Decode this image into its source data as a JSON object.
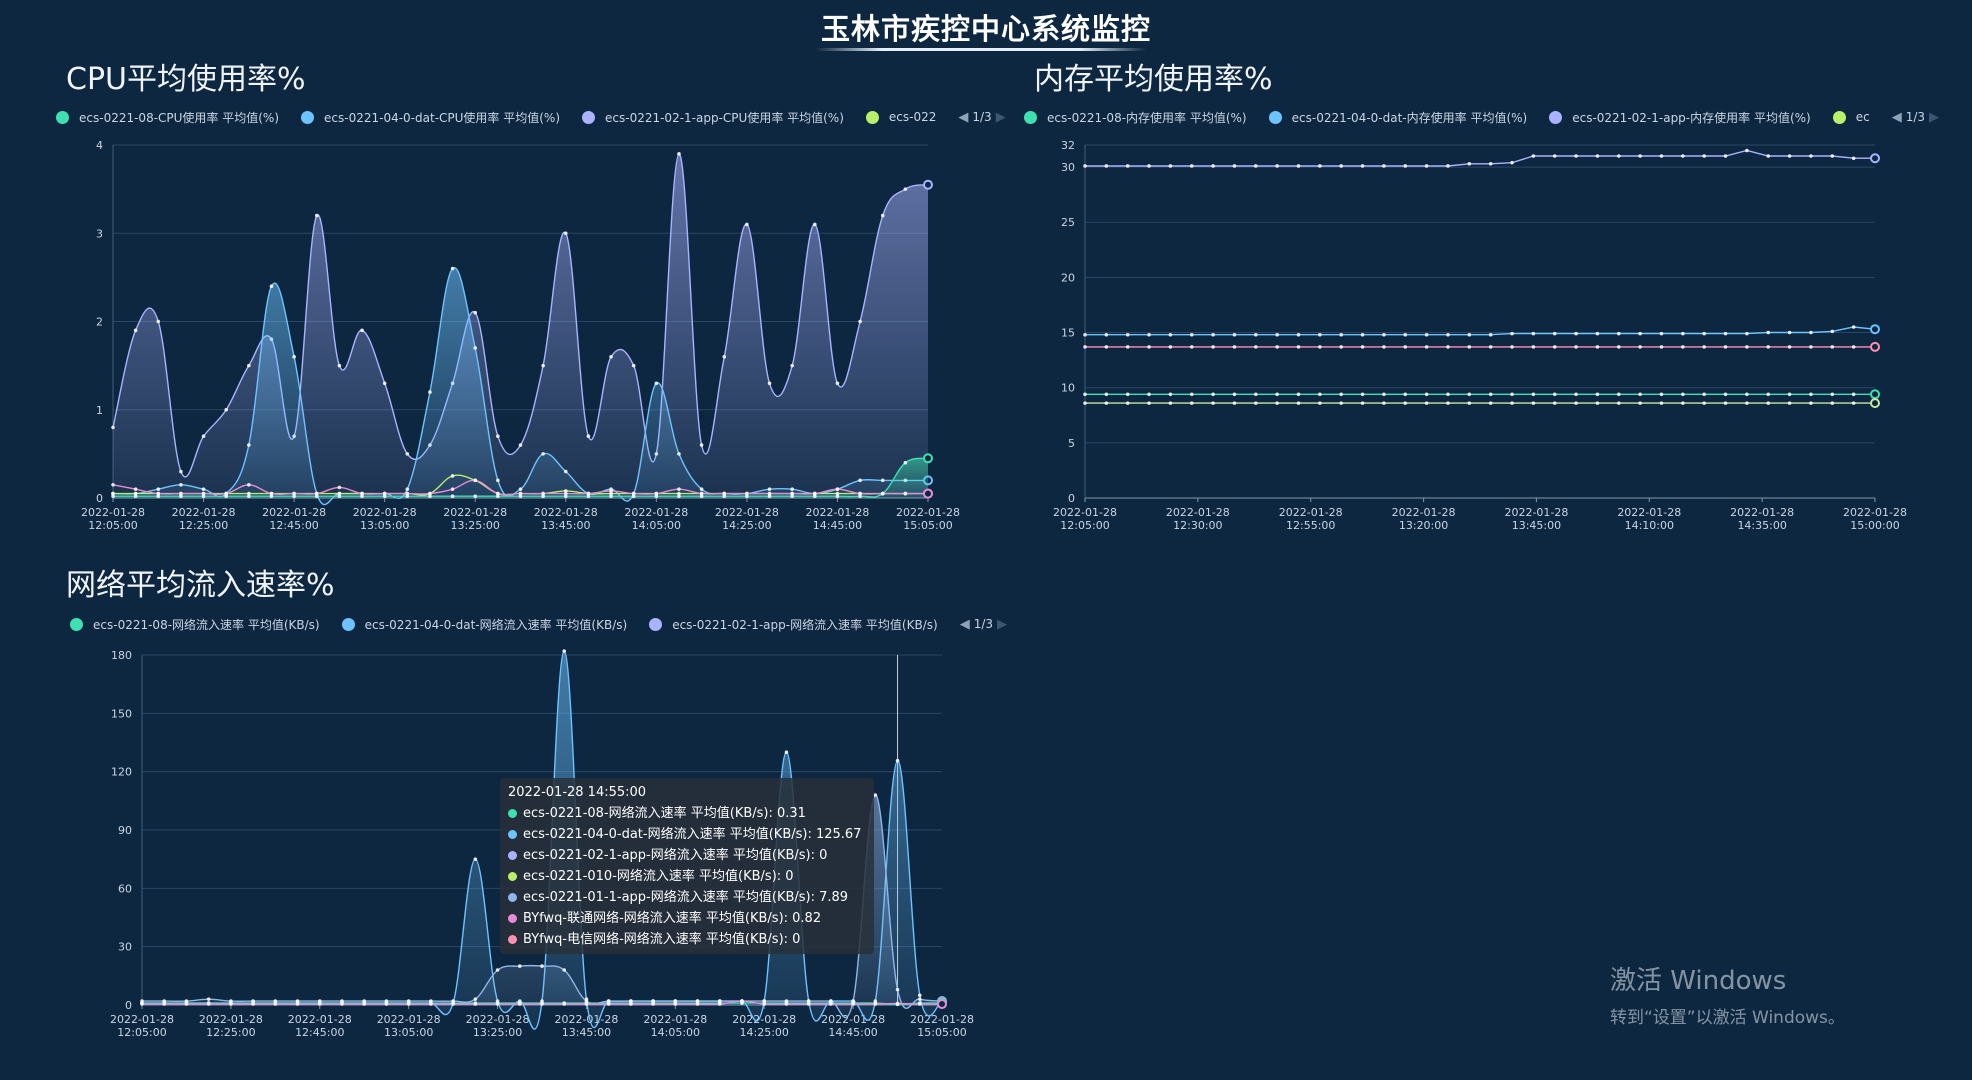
{
  "page": {
    "title": "玉林市疾控中心系统监控"
  },
  "charts": {
    "cpu": {
      "title": "CPU平均使用率%",
      "legend": [
        {
          "label": "ecs-0221-08-CPU使用率 平均值(%)",
          "color": "#3fe0b0"
        },
        {
          "label": "ecs-0221-04-0-dat-CPU使用率 平均值(%)",
          "color": "#6ec3ff"
        },
        {
          "label": "ecs-0221-02-1-app-CPU使用率 平均值(%)",
          "color": "#a9b3ff"
        },
        {
          "label": "ecs-022",
          "color": "#b8f06a"
        }
      ],
      "pager": "1/3"
    },
    "memory": {
      "title": "内存平均使用率%",
      "legend": [
        {
          "label": "ecs-0221-08-内存使用率 平均值(%)",
          "color": "#3fe0b0"
        },
        {
          "label": "ecs-0221-04-0-dat-内存使用率 平均值(%)",
          "color": "#6ec3ff"
        },
        {
          "label": "ecs-0221-02-1-app-内存使用率 平均值(%)",
          "color": "#a9b3ff"
        },
        {
          "label": "ec",
          "color": "#b8f06a"
        }
      ],
      "pager": "1/3"
    },
    "network": {
      "title": "网络平均流入速率%",
      "legend": [
        {
          "label": "ecs-0221-08-网络流入速率 平均值(KB/s)",
          "color": "#3fe0b0"
        },
        {
          "label": "ecs-0221-04-0-dat-网络流入速率 平均值(KB/s)",
          "color": "#6ec3ff"
        },
        {
          "label": "ecs-0221-02-1-app-网络流入速率 平均值(KB/s)",
          "color": "#a9b3ff"
        }
      ],
      "pager": "1/3"
    }
  },
  "tooltip": {
    "title": "2022-01-28 14:55:00",
    "rows": [
      {
        "text": "ecs-0221-08-网络流入速率 平均值(KB/s): 0.31",
        "color": "#3fe0b0"
      },
      {
        "text": "ecs-0221-04-0-dat-网络流入速率 平均值(KB/s): 125.67",
        "color": "#6ec3ff"
      },
      {
        "text": "ecs-0221-02-1-app-网络流入速率 平均值(KB/s): 0",
        "color": "#a9b3ff"
      },
      {
        "text": "ecs-0221-010-网络流入速率 平均值(KB/s): 0",
        "color": "#b8f06a"
      },
      {
        "text": "ecs-0221-01-1-app-网络流入速率 平均值(KB/s): 7.89",
        "color": "#8fb6e8"
      },
      {
        "text": "BYfwq-联通网络-网络流入速率 平均值(KB/s): 0.82",
        "color": "#e98ad8"
      },
      {
        "text": "BYfwq-电信网络-网络流入速率 平均值(KB/s): 0",
        "color": "#ff8fb3"
      }
    ]
  },
  "watermark": {
    "line1": "激活 Windows",
    "line2": "转到“设置”以激活 Windows。"
  },
  "chart_data": [
    {
      "type": "area",
      "title": "CPU平均使用率%",
      "ylim": [
        0,
        4
      ],
      "yticks": [
        0,
        1,
        2,
        3,
        4
      ],
      "x": [
        "2022-01-28 12:05:00",
        "2022-01-28 12:10:00",
        "2022-01-28 12:15:00",
        "2022-01-28 12:20:00",
        "2022-01-28 12:25:00",
        "2022-01-28 12:30:00",
        "2022-01-28 12:35:00",
        "2022-01-28 12:40:00",
        "2022-01-28 12:45:00",
        "2022-01-28 12:50:00",
        "2022-01-28 12:55:00",
        "2022-01-28 13:00:00",
        "2022-01-28 13:05:00",
        "2022-01-28 13:10:00",
        "2022-01-28 13:15:00",
        "2022-01-28 13:20:00",
        "2022-01-28 13:25:00",
        "2022-01-28 13:30:00",
        "2022-01-28 13:35:00",
        "2022-01-28 13:40:00",
        "2022-01-28 13:45:00",
        "2022-01-28 13:50:00",
        "2022-01-28 13:55:00",
        "2022-01-28 14:00:00",
        "2022-01-28 14:05:00",
        "2022-01-28 14:10:00",
        "2022-01-28 14:15:00",
        "2022-01-28 14:20:00",
        "2022-01-28 14:25:00",
        "2022-01-28 14:30:00",
        "2022-01-28 14:35:00",
        "2022-01-28 14:40:00",
        "2022-01-28 14:45:00",
        "2022-01-28 14:50:00",
        "2022-01-28 14:55:00",
        "2022-01-28 15:00:00",
        "2022-01-28 15:05:00"
      ],
      "xtick_labels": [
        [
          "2022-01-28",
          "12:05:00"
        ],
        [
          "2022-01-28",
          "12:25:00"
        ],
        [
          "2022-01-28",
          "12:45:00"
        ],
        [
          "2022-01-28",
          "13:05:00"
        ],
        [
          "2022-01-28",
          "13:25:00"
        ],
        [
          "2022-01-28",
          "13:45:00"
        ],
        [
          "2022-01-28",
          "14:05:00"
        ],
        [
          "2022-01-28",
          "14:25:00"
        ],
        [
          "2022-01-28",
          "14:45:00"
        ],
        [
          "2022-01-28",
          "15:05:00"
        ]
      ],
      "series": [
        {
          "color": "#a9b3ff",
          "fill": true,
          "values": [
            0.8,
            1.9,
            2.0,
            0.3,
            0.7,
            1.0,
            1.5,
            1.8,
            0.7,
            3.2,
            1.5,
            1.9,
            1.3,
            0.5,
            0.6,
            1.3,
            2.1,
            0.7,
            0.6,
            1.5,
            3.0,
            0.7,
            1.6,
            1.5,
            0.5,
            3.9,
            0.6,
            1.6,
            3.1,
            1.3,
            1.5,
            3.1,
            1.3,
            2.0,
            3.2,
            3.5,
            3.55
          ]
        },
        {
          "color": "#6ec3ff",
          "fill": true,
          "values": [
            0.05,
            0.05,
            0.1,
            0.15,
            0.1,
            0.05,
            0.6,
            2.4,
            1.6,
            0.05,
            0.05,
            0.05,
            0.05,
            0.1,
            1.2,
            2.6,
            1.7,
            0.2,
            0.1,
            0.5,
            0.3,
            0.05,
            0.1,
            0.05,
            1.3,
            0.5,
            0.1,
            0.05,
            0.05,
            0.1,
            0.1,
            0.05,
            0.1,
            0.2,
            0.2,
            0.2,
            0.2
          ]
        },
        {
          "color": "#3fe0b0",
          "fill": true,
          "values": [
            0.02,
            0.02,
            0.02,
            0.02,
            0.02,
            0.02,
            0.02,
            0.02,
            0.02,
            0.02,
            0.02,
            0.02,
            0.02,
            0.02,
            0.02,
            0.02,
            0.02,
            0.02,
            0.02,
            0.02,
            0.02,
            0.02,
            0.02,
            0.02,
            0.02,
            0.02,
            0.02,
            0.02,
            0.02,
            0.02,
            0.02,
            0.02,
            0.02,
            0.02,
            0.05,
            0.4,
            0.45
          ]
        },
        {
          "color": "#b8f06a",
          "fill": false,
          "values": [
            0.05,
            0.05,
            0.05,
            0.05,
            0.05,
            0.05,
            0.05,
            0.05,
            0.05,
            0.05,
            0.05,
            0.05,
            0.05,
            0.05,
            0.05,
            0.25,
            0.2,
            0.05,
            0.05,
            0.05,
            0.08,
            0.05,
            0.05,
            0.05,
            0.05,
            0.05,
            0.05,
            0.05,
            0.05,
            0.05,
            0.05,
            0.05,
            0.05,
            0.05,
            0.05,
            0.05,
            0.05
          ]
        },
        {
          "color": "#e98ad8",
          "fill": false,
          "values": [
            0.15,
            0.1,
            0.05,
            0.05,
            0.05,
            0.05,
            0.15,
            0.05,
            0.05,
            0.05,
            0.12,
            0.05,
            0.05,
            0.05,
            0.05,
            0.1,
            0.2,
            0.05,
            0.05,
            0.05,
            0.05,
            0.05,
            0.08,
            0.05,
            0.05,
            0.1,
            0.05,
            0.05,
            0.05,
            0.05,
            0.05,
            0.05,
            0.1,
            0.05,
            0.05,
            0.05,
            0.05
          ]
        }
      ]
    },
    {
      "type": "line",
      "title": "内存平均使用率%",
      "ylim": [
        0,
        32
      ],
      "yticks": [
        0,
        5,
        10,
        15,
        20,
        25,
        30,
        32
      ],
      "x": [
        "2022-01-28 12:05:00",
        "2022-01-28 12:10:00",
        "2022-01-28 12:15:00",
        "2022-01-28 12:20:00",
        "2022-01-28 12:25:00",
        "2022-01-28 12:30:00",
        "2022-01-28 12:35:00",
        "2022-01-28 12:40:00",
        "2022-01-28 12:45:00",
        "2022-01-28 12:50:00",
        "2022-01-28 12:55:00",
        "2022-01-28 13:00:00",
        "2022-01-28 13:05:00",
        "2022-01-28 13:10:00",
        "2022-01-28 13:15:00",
        "2022-01-28 13:20:00",
        "2022-01-28 13:25:00",
        "2022-01-28 13:30:00",
        "2022-01-28 13:35:00",
        "2022-01-28 13:40:00",
        "2022-01-28 13:45:00",
        "2022-01-28 13:50:00",
        "2022-01-28 13:55:00",
        "2022-01-28 14:00:00",
        "2022-01-28 14:05:00",
        "2022-01-28 14:10:00",
        "2022-01-28 14:15:00",
        "2022-01-28 14:20:00",
        "2022-01-28 14:25:00",
        "2022-01-28 14:30:00",
        "2022-01-28 14:35:00",
        "2022-01-28 14:40:00",
        "2022-01-28 14:45:00",
        "2022-01-28 14:50:00",
        "2022-01-28 14:55:00",
        "2022-01-28 15:00:00",
        "2022-01-28 15:05:00",
        "2022-01-28 15:10:00"
      ],
      "xtick_labels": [
        [
          "2022-01-28",
          "12:05:00"
        ],
        [
          "2022-01-28",
          "12:30:00"
        ],
        [
          "2022-01-28",
          "12:55:00"
        ],
        [
          "2022-01-28",
          "13:20:00"
        ],
        [
          "2022-01-28",
          "13:45:00"
        ],
        [
          "2022-01-28",
          "14:10:00"
        ],
        [
          "2022-01-28",
          "14:35:00"
        ],
        [
          "2022-01-28",
          "15:00:00"
        ]
      ],
      "series": [
        {
          "color": "#a9b3ff",
          "values": [
            30.1,
            30.1,
            30.1,
            30.1,
            30.1,
            30.1,
            30.1,
            30.1,
            30.1,
            30.1,
            30.1,
            30.1,
            30.1,
            30.1,
            30.1,
            30.1,
            30.1,
            30.1,
            30.3,
            30.3,
            30.4,
            31.0,
            31.0,
            31.0,
            31.0,
            31.0,
            31.0,
            31.0,
            31.0,
            31.0,
            31.0,
            31.5,
            31.0,
            31.0,
            31.0,
            31.0,
            30.8,
            30.8
          ]
        },
        {
          "color": "#6ec3ff",
          "values": [
            14.8,
            14.8,
            14.8,
            14.8,
            14.8,
            14.8,
            14.8,
            14.8,
            14.8,
            14.8,
            14.8,
            14.8,
            14.8,
            14.8,
            14.8,
            14.8,
            14.8,
            14.8,
            14.8,
            14.8,
            14.9,
            14.9,
            14.9,
            14.9,
            14.9,
            14.9,
            14.9,
            14.9,
            14.9,
            14.9,
            14.9,
            14.9,
            15.0,
            15.0,
            15.0,
            15.1,
            15.5,
            15.3
          ]
        },
        {
          "color": "#ff8fb3",
          "values": [
            13.7,
            13.7,
            13.7,
            13.7,
            13.7,
            13.7,
            13.7,
            13.7,
            13.7,
            13.7,
            13.7,
            13.7,
            13.7,
            13.7,
            13.7,
            13.7,
            13.7,
            13.7,
            13.7,
            13.7,
            13.7,
            13.7,
            13.7,
            13.7,
            13.7,
            13.7,
            13.7,
            13.7,
            13.7,
            13.7,
            13.7,
            13.7,
            13.7,
            13.7,
            13.7,
            13.7,
            13.7,
            13.7
          ]
        },
        {
          "color": "#3fe0b0",
          "values": [
            9.4,
            9.4,
            9.4,
            9.4,
            9.4,
            9.4,
            9.4,
            9.4,
            9.4,
            9.4,
            9.4,
            9.4,
            9.4,
            9.4,
            9.4,
            9.4,
            9.4,
            9.4,
            9.4,
            9.4,
            9.4,
            9.4,
            9.4,
            9.4,
            9.4,
            9.4,
            9.4,
            9.4,
            9.4,
            9.4,
            9.4,
            9.4,
            9.4,
            9.4,
            9.4,
            9.4,
            9.4,
            9.4
          ]
        },
        {
          "color": "#c8e6a0",
          "values": [
            8.6,
            8.6,
            8.6,
            8.6,
            8.6,
            8.6,
            8.6,
            8.6,
            8.6,
            8.6,
            8.6,
            8.6,
            8.6,
            8.6,
            8.6,
            8.6,
            8.6,
            8.6,
            8.6,
            8.6,
            8.6,
            8.6,
            8.6,
            8.6,
            8.6,
            8.6,
            8.6,
            8.6,
            8.6,
            8.6,
            8.6,
            8.6,
            8.6,
            8.6,
            8.6,
            8.6,
            8.6,
            8.6
          ]
        }
      ]
    },
    {
      "type": "area",
      "title": "网络平均流入速率%",
      "ylim": [
        0,
        180
      ],
      "yticks": [
        0,
        30,
        60,
        90,
        120,
        150,
        180
      ],
      "x": [
        "2022-01-28 12:05:00",
        "2022-01-28 12:10:00",
        "2022-01-28 12:15:00",
        "2022-01-28 12:20:00",
        "2022-01-28 12:25:00",
        "2022-01-28 12:30:00",
        "2022-01-28 12:35:00",
        "2022-01-28 12:40:00",
        "2022-01-28 12:45:00",
        "2022-01-28 12:50:00",
        "2022-01-28 12:55:00",
        "2022-01-28 13:00:00",
        "2022-01-28 13:05:00",
        "2022-01-28 13:10:00",
        "2022-01-28 13:15:00",
        "2022-01-28 13:20:00",
        "2022-01-28 13:25:00",
        "2022-01-28 13:30:00",
        "2022-01-28 13:35:00",
        "2022-01-28 13:40:00",
        "2022-01-28 13:45:00",
        "2022-01-28 13:50:00",
        "2022-01-28 13:55:00",
        "2022-01-28 14:00:00",
        "2022-01-28 14:05:00",
        "2022-01-28 14:10:00",
        "2022-01-28 14:15:00",
        "2022-01-28 14:20:00",
        "2022-01-28 14:25:00",
        "2022-01-28 14:30:00",
        "2022-01-28 14:35:00",
        "2022-01-28 14:40:00",
        "2022-01-28 14:45:00",
        "2022-01-28 14:50:00",
        "2022-01-28 14:55:00",
        "2022-01-28 15:00:00",
        "2022-01-28 15:05:00"
      ],
      "xtick_labels": [
        [
          "2022-01-28",
          "12:05:00"
        ],
        [
          "2022-01-28",
          "12:25:00"
        ],
        [
          "2022-01-28",
          "12:45:00"
        ],
        [
          "2022-01-28",
          "13:05:00"
        ],
        [
          "2022-01-28",
          "13:25:00"
        ],
        [
          "2022-01-28",
          "13:45:00"
        ],
        [
          "2022-01-28",
          "14:05:00"
        ],
        [
          "2022-01-28",
          "14:25:00"
        ],
        [
          "2022-01-28",
          "14:45:00"
        ],
        [
          "2022-01-28",
          "15:05:00"
        ]
      ],
      "crosshair_x": "2022-01-28 14:55:00",
      "series": [
        {
          "color": "#6ec3ff",
          "fill": true,
          "values": [
            1,
            1,
            1,
            1,
            1,
            1,
            1,
            1,
            1,
            1,
            1,
            1,
            1,
            1,
            1,
            75,
            2,
            2,
            2,
            182,
            3,
            2,
            2,
            2,
            2,
            2,
            2,
            2,
            2,
            130,
            2,
            2,
            2,
            2,
            125.67,
            5,
            2
          ]
        },
        {
          "color": "#8fb6e8",
          "fill": true,
          "values": [
            2,
            2,
            2,
            3,
            2,
            2,
            2,
            2,
            2,
            2,
            2,
            2,
            2,
            2,
            2,
            3,
            18,
            20,
            20,
            18,
            2,
            2,
            2,
            2,
            2,
            2,
            2,
            2,
            2,
            2,
            2,
            2,
            2,
            108,
            7.89,
            3,
            2
          ]
        },
        {
          "color": "#3fe0b0",
          "fill": false,
          "values": [
            1,
            1,
            1,
            1,
            1,
            1,
            1,
            1,
            1,
            1,
            1,
            1,
            1,
            1,
            1,
            1,
            1,
            1,
            1,
            1,
            1,
            1,
            1,
            1,
            1,
            1,
            1,
            1,
            1,
            1,
            1,
            1,
            1,
            1,
            0.31,
            1,
            1
          ]
        },
        {
          "color": "#e98ad8",
          "fill": false,
          "values": [
            0.5,
            0.5,
            0.5,
            0.5,
            0.5,
            0.5,
            0.5,
            0.5,
            0.5,
            0.5,
            0.5,
            0.5,
            0.5,
            0.5,
            0.5,
            0.5,
            0.5,
            0.5,
            0.5,
            0.5,
            0.5,
            0.5,
            0.5,
            0.5,
            0.5,
            0.5,
            0.5,
            2,
            0.5,
            0.5,
            0.5,
            0.5,
            0.5,
            0.5,
            0.82,
            0.5,
            0.5
          ]
        }
      ]
    }
  ]
}
